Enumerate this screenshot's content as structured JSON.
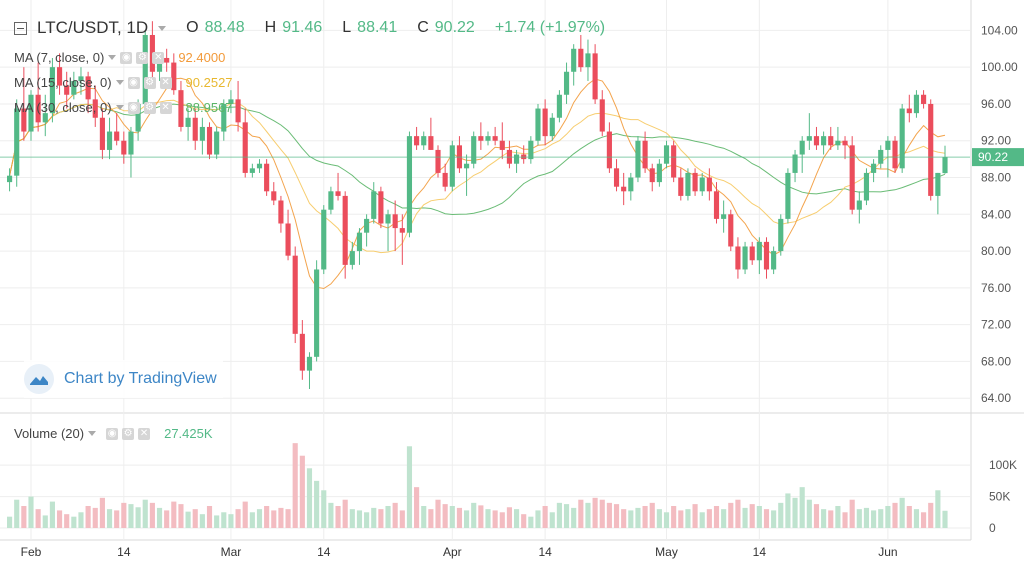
{
  "header": {
    "symbol": "LTC/USDT, 1D",
    "open_label": "O",
    "open": "88.48",
    "high_label": "H",
    "high": "91.46",
    "low_label": "L",
    "low": "88.41",
    "close_label": "C",
    "close": "90.22",
    "change": "+1.74 (+1.97%)"
  },
  "indicators": [
    {
      "label": "MA (7, close, 0)",
      "value": "92.4000",
      "color": "#f29a3a"
    },
    {
      "label": "MA (15, close, 0)",
      "value": "90.2527",
      "color": "#f6c85f"
    },
    {
      "label": "MA (30, close, 0)",
      "value": "88.9567",
      "color": "#5ab567"
    }
  ],
  "volume_indicator": {
    "label": "Volume (20)",
    "value": "27.425K",
    "color": "#53b987"
  },
  "watermark": "Chart by TradingView",
  "colors": {
    "up": "#53b987",
    "down": "#eb4d5c",
    "volume_up": "#bfe3cf",
    "volume_down": "#f3bcc1",
    "grid": "#eeeeee",
    "price_line": "#53b987"
  },
  "chart_data": {
    "type": "candlestick",
    "title": "LTC/USDT, 1D",
    "last_price": "90.22",
    "y_ticks": [
      "104.00",
      "100.00",
      "96.00",
      "92.00",
      "88.00",
      "84.00",
      "80.00",
      "76.00",
      "72.00",
      "68.00",
      "64.00"
    ],
    "ylim": [
      62.5,
      106.0
    ],
    "volume_ticks": [
      "100K",
      "50K",
      "0"
    ],
    "volume_max": 140,
    "x_ticks": [
      {
        "label": "Feb",
        "index": 3
      },
      {
        "label": "14",
        "index": 16
      },
      {
        "label": "Mar",
        "index": 31
      },
      {
        "label": "14",
        "index": 44
      },
      {
        "label": "Apr",
        "index": 62
      },
      {
        "label": "14",
        "index": 75
      },
      {
        "label": "May",
        "index": 92
      },
      {
        "label": "14",
        "index": 105
      },
      {
        "label": "Jun",
        "index": 123
      }
    ],
    "num_slots": 135,
    "candles": [
      {
        "o": 87.5,
        "h": 89.0,
        "l": 86.5,
        "c": 88.2,
        "v": 18
      },
      {
        "o": 88.2,
        "h": 96.5,
        "l": 87.0,
        "c": 95.5,
        "v": 45
      },
      {
        "o": 95.5,
        "h": 100.0,
        "l": 92.0,
        "c": 93.0,
        "v": 35
      },
      {
        "o": 93.0,
        "h": 97.5,
        "l": 92.0,
        "c": 97.0,
        "v": 50
      },
      {
        "o": 97.0,
        "h": 100.5,
        "l": 93.0,
        "c": 94.0,
        "v": 30
      },
      {
        "o": 94.0,
        "h": 97.0,
        "l": 92.5,
        "c": 95.0,
        "v": 20
      },
      {
        "o": 95.0,
        "h": 101.0,
        "l": 94.0,
        "c": 100.0,
        "v": 42
      },
      {
        "o": 100.0,
        "h": 101.5,
        "l": 97.0,
        "c": 98.0,
        "v": 28
      },
      {
        "o": 98.0,
        "h": 99.5,
        "l": 95.5,
        "c": 97.0,
        "v": 22
      },
      {
        "o": 97.0,
        "h": 99.5,
        "l": 96.5,
        "c": 98.5,
        "v": 18
      },
      {
        "o": 98.5,
        "h": 100.0,
        "l": 97.0,
        "c": 99.0,
        "v": 25
      },
      {
        "o": 99.0,
        "h": 99.5,
        "l": 95.0,
        "c": 96.5,
        "v": 35
      },
      {
        "o": 96.5,
        "h": 98.0,
        "l": 93.5,
        "c": 94.5,
        "v": 32
      },
      {
        "o": 94.5,
        "h": 95.5,
        "l": 90.0,
        "c": 91.0,
        "v": 48
      },
      {
        "o": 91.0,
        "h": 94.5,
        "l": 90.0,
        "c": 93.0,
        "v": 30
      },
      {
        "o": 93.0,
        "h": 95.0,
        "l": 91.5,
        "c": 92.0,
        "v": 28
      },
      {
        "o": 92.0,
        "h": 93.0,
        "l": 89.5,
        "c": 90.5,
        "v": 40
      },
      {
        "o": 90.5,
        "h": 93.5,
        "l": 88.0,
        "c": 93.0,
        "v": 38
      },
      {
        "o": 93.0,
        "h": 96.5,
        "l": 92.0,
        "c": 96.0,
        "v": 33
      },
      {
        "o": 96.0,
        "h": 104.0,
        "l": 95.0,
        "c": 103.5,
        "v": 45
      },
      {
        "o": 103.5,
        "h": 105.0,
        "l": 98.0,
        "c": 99.5,
        "v": 40
      },
      {
        "o": 99.5,
        "h": 101.5,
        "l": 98.5,
        "c": 101.0,
        "v": 32
      },
      {
        "o": 101.0,
        "h": 102.0,
        "l": 99.5,
        "c": 100.5,
        "v": 28
      },
      {
        "o": 100.5,
        "h": 101.5,
        "l": 97.0,
        "c": 97.5,
        "v": 42
      },
      {
        "o": 97.5,
        "h": 98.5,
        "l": 93.0,
        "c": 93.5,
        "v": 38
      },
      {
        "o": 93.5,
        "h": 95.5,
        "l": 92.0,
        "c": 94.5,
        "v": 26
      },
      {
        "o": 94.5,
        "h": 95.5,
        "l": 91.0,
        "c": 92.0,
        "v": 30
      },
      {
        "o": 92.0,
        "h": 94.5,
        "l": 90.5,
        "c": 93.5,
        "v": 22
      },
      {
        "o": 93.5,
        "h": 94.0,
        "l": 90.0,
        "c": 90.5,
        "v": 35
      },
      {
        "o": 90.5,
        "h": 93.5,
        "l": 90.0,
        "c": 93.0,
        "v": 20
      },
      {
        "o": 93.0,
        "h": 96.5,
        "l": 92.0,
        "c": 96.0,
        "v": 25
      },
      {
        "o": 96.0,
        "h": 97.5,
        "l": 95.0,
        "c": 96.5,
        "v": 22
      },
      {
        "o": 96.5,
        "h": 98.5,
        "l": 93.0,
        "c": 94.0,
        "v": 30
      },
      {
        "o": 94.0,
        "h": 95.5,
        "l": 88.0,
        "c": 88.5,
        "v": 42
      },
      {
        "o": 88.5,
        "h": 89.5,
        "l": 88.0,
        "c": 89.0,
        "v": 25
      },
      {
        "o": 89.0,
        "h": 90.0,
        "l": 88.5,
        "c": 89.5,
        "v": 30
      },
      {
        "o": 89.5,
        "h": 90.0,
        "l": 86.0,
        "c": 86.5,
        "v": 35
      },
      {
        "o": 86.5,
        "h": 87.5,
        "l": 85.0,
        "c": 85.5,
        "v": 28
      },
      {
        "o": 85.5,
        "h": 86.0,
        "l": 82.0,
        "c": 83.0,
        "v": 32
      },
      {
        "o": 83.0,
        "h": 84.5,
        "l": 79.0,
        "c": 79.5,
        "v": 30
      },
      {
        "o": 79.5,
        "h": 80.5,
        "l": 70.0,
        "c": 71.0,
        "v": 135
      },
      {
        "o": 71.0,
        "h": 72.5,
        "l": 66.0,
        "c": 67.0,
        "v": 115
      },
      {
        "o": 67.0,
        "h": 69.0,
        "l": 65.0,
        "c": 68.5,
        "v": 95
      },
      {
        "o": 68.5,
        "h": 79.0,
        "l": 68.0,
        "c": 78.0,
        "v": 75
      },
      {
        "o": 78.0,
        "h": 85.0,
        "l": 77.5,
        "c": 84.5,
        "v": 60
      },
      {
        "o": 84.5,
        "h": 87.0,
        "l": 84.0,
        "c": 86.5,
        "v": 40
      },
      {
        "o": 86.5,
        "h": 88.5,
        "l": 85.5,
        "c": 86.0,
        "v": 35
      },
      {
        "o": 86.0,
        "h": 86.5,
        "l": 77.0,
        "c": 78.5,
        "v": 45
      },
      {
        "o": 78.5,
        "h": 81.0,
        "l": 78.0,
        "c": 80.0,
        "v": 30
      },
      {
        "o": 80.0,
        "h": 82.5,
        "l": 78.5,
        "c": 82.0,
        "v": 28
      },
      {
        "o": 82.0,
        "h": 84.0,
        "l": 80.5,
        "c": 83.5,
        "v": 25
      },
      {
        "o": 83.5,
        "h": 87.5,
        "l": 83.0,
        "c": 86.5,
        "v": 32
      },
      {
        "o": 86.5,
        "h": 87.0,
        "l": 82.5,
        "c": 83.0,
        "v": 30
      },
      {
        "o": 83.0,
        "h": 84.5,
        "l": 80.0,
        "c": 84.0,
        "v": 35
      },
      {
        "o": 84.0,
        "h": 85.5,
        "l": 80.0,
        "c": 82.5,
        "v": 40
      },
      {
        "o": 82.5,
        "h": 84.0,
        "l": 78.5,
        "c": 82.0,
        "v": 28
      },
      {
        "o": 82.0,
        "h": 93.0,
        "l": 81.5,
        "c": 92.5,
        "v": 130
      },
      {
        "o": 92.5,
        "h": 93.5,
        "l": 91.0,
        "c": 91.5,
        "v": 65
      },
      {
        "o": 91.5,
        "h": 93.0,
        "l": 91.0,
        "c": 92.5,
        "v": 35
      },
      {
        "o": 92.5,
        "h": 94.5,
        "l": 91.0,
        "c": 91.0,
        "v": 30
      },
      {
        "o": 91.0,
        "h": 91.5,
        "l": 88.0,
        "c": 88.5,
        "v": 45
      },
      {
        "o": 88.5,
        "h": 89.5,
        "l": 86.5,
        "c": 87.0,
        "v": 38
      },
      {
        "o": 87.0,
        "h": 92.0,
        "l": 86.5,
        "c": 91.5,
        "v": 35
      },
      {
        "o": 91.5,
        "h": 92.5,
        "l": 88.5,
        "c": 89.0,
        "v": 32
      },
      {
        "o": 89.0,
        "h": 90.5,
        "l": 86.0,
        "c": 89.5,
        "v": 28
      },
      {
        "o": 89.5,
        "h": 93.0,
        "l": 89.0,
        "c": 92.5,
        "v": 40
      },
      {
        "o": 92.5,
        "h": 94.0,
        "l": 91.0,
        "c": 92.0,
        "v": 36
      },
      {
        "o": 92.0,
        "h": 93.0,
        "l": 91.5,
        "c": 92.5,
        "v": 30
      },
      {
        "o": 92.5,
        "h": 93.5,
        "l": 91.5,
        "c": 92.0,
        "v": 28
      },
      {
        "o": 92.0,
        "h": 94.0,
        "l": 90.0,
        "c": 91.0,
        "v": 25
      },
      {
        "o": 91.0,
        "h": 92.0,
        "l": 89.0,
        "c": 89.5,
        "v": 33
      },
      {
        "o": 89.5,
        "h": 91.0,
        "l": 88.5,
        "c": 90.5,
        "v": 30
      },
      {
        "o": 90.5,
        "h": 91.5,
        "l": 89.5,
        "c": 90.0,
        "v": 22
      },
      {
        "o": 90.0,
        "h": 92.5,
        "l": 89.5,
        "c": 92.0,
        "v": 18
      },
      {
        "o": 92.0,
        "h": 96.0,
        "l": 91.5,
        "c": 95.5,
        "v": 28
      },
      {
        "o": 95.5,
        "h": 96.5,
        "l": 91.5,
        "c": 92.5,
        "v": 35
      },
      {
        "o": 92.5,
        "h": 95.0,
        "l": 92.0,
        "c": 94.5,
        "v": 25
      },
      {
        "o": 94.5,
        "h": 97.5,
        "l": 94.0,
        "c": 97.0,
        "v": 40
      },
      {
        "o": 97.0,
        "h": 100.5,
        "l": 96.0,
        "c": 99.5,
        "v": 38
      },
      {
        "o": 99.5,
        "h": 102.5,
        "l": 98.0,
        "c": 102.0,
        "v": 32
      },
      {
        "o": 102.0,
        "h": 103.5,
        "l": 99.5,
        "c": 100.0,
        "v": 45
      },
      {
        "o": 100.0,
        "h": 103.0,
        "l": 98.5,
        "c": 101.5,
        "v": 40
      },
      {
        "o": 101.5,
        "h": 102.5,
        "l": 96.0,
        "c": 96.5,
        "v": 48
      },
      {
        "o": 96.5,
        "h": 97.5,
        "l": 92.5,
        "c": 93.0,
        "v": 45
      },
      {
        "o": 93.0,
        "h": 94.0,
        "l": 88.5,
        "c": 89.0,
        "v": 40
      },
      {
        "o": 89.0,
        "h": 90.0,
        "l": 86.5,
        "c": 87.0,
        "v": 38
      },
      {
        "o": 87.0,
        "h": 88.5,
        "l": 85.0,
        "c": 86.5,
        "v": 30
      },
      {
        "o": 86.5,
        "h": 88.5,
        "l": 85.5,
        "c": 88.0,
        "v": 28
      },
      {
        "o": 88.0,
        "h": 92.5,
        "l": 87.5,
        "c": 92.0,
        "v": 32
      },
      {
        "o": 92.0,
        "h": 93.0,
        "l": 88.5,
        "c": 89.0,
        "v": 35
      },
      {
        "o": 89.0,
        "h": 89.5,
        "l": 86.5,
        "c": 87.5,
        "v": 40
      },
      {
        "o": 87.5,
        "h": 90.0,
        "l": 87.0,
        "c": 89.5,
        "v": 30
      },
      {
        "o": 89.5,
        "h": 92.0,
        "l": 89.0,
        "c": 91.5,
        "v": 25
      },
      {
        "o": 91.5,
        "h": 92.0,
        "l": 87.5,
        "c": 88.0,
        "v": 35
      },
      {
        "o": 88.0,
        "h": 89.0,
        "l": 85.5,
        "c": 86.0,
        "v": 28
      },
      {
        "o": 86.0,
        "h": 89.0,
        "l": 85.5,
        "c": 88.5,
        "v": 30
      },
      {
        "o": 88.5,
        "h": 89.0,
        "l": 86.0,
        "c": 86.5,
        "v": 38
      },
      {
        "o": 86.5,
        "h": 88.5,
        "l": 86.0,
        "c": 88.0,
        "v": 25
      },
      {
        "o": 88.0,
        "h": 89.0,
        "l": 85.5,
        "c": 86.5,
        "v": 30
      },
      {
        "o": 86.5,
        "h": 87.5,
        "l": 83.0,
        "c": 83.5,
        "v": 35
      },
      {
        "o": 83.5,
        "h": 85.5,
        "l": 82.0,
        "c": 84.0,
        "v": 30
      },
      {
        "o": 84.0,
        "h": 84.5,
        "l": 80.0,
        "c": 80.5,
        "v": 40
      },
      {
        "o": 80.5,
        "h": 81.5,
        "l": 77.0,
        "c": 78.0,
        "v": 45
      },
      {
        "o": 78.0,
        "h": 81.0,
        "l": 77.5,
        "c": 80.5,
        "v": 32
      },
      {
        "o": 80.5,
        "h": 81.0,
        "l": 78.5,
        "c": 79.0,
        "v": 38
      },
      {
        "o": 79.0,
        "h": 81.5,
        "l": 77.5,
        "c": 81.0,
        "v": 35
      },
      {
        "o": 81.0,
        "h": 81.5,
        "l": 77.0,
        "c": 78.0,
        "v": 30
      },
      {
        "o": 78.0,
        "h": 80.5,
        "l": 77.5,
        "c": 80.0,
        "v": 28
      },
      {
        "o": 80.0,
        "h": 84.0,
        "l": 79.5,
        "c": 83.5,
        "v": 40
      },
      {
        "o": 83.5,
        "h": 89.0,
        "l": 83.0,
        "c": 88.5,
        "v": 55
      },
      {
        "o": 88.5,
        "h": 91.0,
        "l": 87.5,
        "c": 90.5,
        "v": 48
      },
      {
        "o": 90.5,
        "h": 92.5,
        "l": 88.5,
        "c": 92.0,
        "v": 65
      },
      {
        "o": 92.0,
        "h": 95.0,
        "l": 91.0,
        "c": 92.5,
        "v": 45
      },
      {
        "o": 92.5,
        "h": 93.5,
        "l": 91.0,
        "c": 91.5,
        "v": 38
      },
      {
        "o": 91.5,
        "h": 93.0,
        "l": 90.5,
        "c": 92.5,
        "v": 30
      },
      {
        "o": 92.5,
        "h": 93.5,
        "l": 91.0,
        "c": 91.5,
        "v": 28
      },
      {
        "o": 91.5,
        "h": 93.5,
        "l": 91.0,
        "c": 92.0,
        "v": 35
      },
      {
        "o": 92.0,
        "h": 92.5,
        "l": 90.0,
        "c": 91.5,
        "v": 25
      },
      {
        "o": 91.5,
        "h": 92.5,
        "l": 84.0,
        "c": 84.5,
        "v": 45
      },
      {
        "o": 84.5,
        "h": 86.5,
        "l": 83.0,
        "c": 85.5,
        "v": 30
      },
      {
        "o": 85.5,
        "h": 89.0,
        "l": 85.0,
        "c": 88.5,
        "v": 32
      },
      {
        "o": 88.5,
        "h": 90.0,
        "l": 87.5,
        "c": 89.5,
        "v": 28
      },
      {
        "o": 89.5,
        "h": 91.5,
        "l": 89.0,
        "c": 91.0,
        "v": 30
      },
      {
        "o": 91.0,
        "h": 92.5,
        "l": 88.0,
        "c": 92.0,
        "v": 35
      },
      {
        "o": 92.0,
        "h": 92.5,
        "l": 88.5,
        "c": 89.0,
        "v": 40
      },
      {
        "o": 89.0,
        "h": 96.0,
        "l": 88.5,
        "c": 95.5,
        "v": 48
      },
      {
        "o": 95.5,
        "h": 97.0,
        "l": 94.0,
        "c": 95.0,
        "v": 35
      },
      {
        "o": 95.0,
        "h": 97.5,
        "l": 94.5,
        "c": 97.0,
        "v": 30
      },
      {
        "o": 97.0,
        "h": 97.5,
        "l": 95.5,
        "c": 96.0,
        "v": 25
      },
      {
        "o": 96.0,
        "h": 96.5,
        "l": 85.5,
        "c": 86.0,
        "v": 40
      },
      {
        "o": 86.0,
        "h": 88.5,
        "l": 84.0,
        "c": 88.5,
        "v": 60
      },
      {
        "o": 88.48,
        "h": 91.46,
        "l": 88.41,
        "c": 90.22,
        "v": 27.4
      }
    ]
  }
}
